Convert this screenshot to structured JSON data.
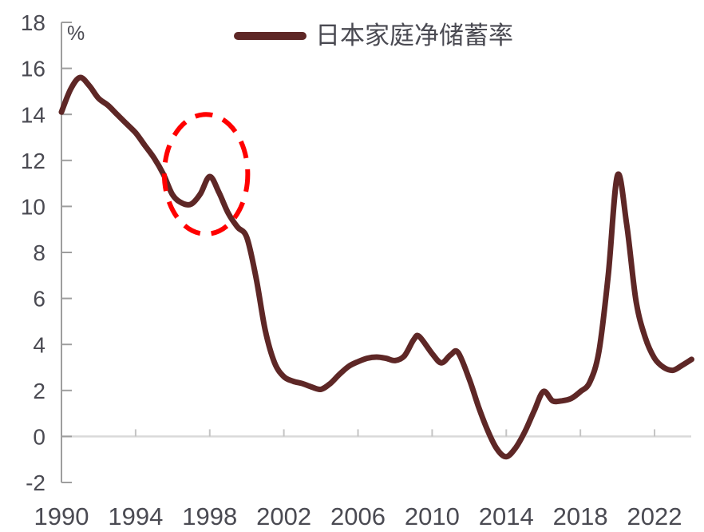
{
  "page": {
    "background": "#ffffff"
  },
  "colors": {
    "series_line": "#5e2726",
    "annotation_red": "#ff0000",
    "axis_line": "#9e9e9e",
    "zero_line": "#d9d9d9",
    "zero_line_tick": "#c4c4c4",
    "label_text": "#4a4a52"
  },
  "legend": {
    "items": [
      {
        "label": "日本家庭净储蓄率",
        "swatch": "line"
      }
    ]
  },
  "chart_data": {
    "type": "line",
    "title": "",
    "unit_label": "%",
    "legend_position": "top-center",
    "grid": "zero-line-only",
    "x_axis": {
      "range": [
        1990,
        2024
      ],
      "tick_values": [
        1990,
        1994,
        1998,
        2002,
        2006,
        2010,
        2014,
        2018,
        2022
      ],
      "tick_labels": [
        "1990",
        "1994",
        "1998",
        "2002",
        "2006",
        "2010",
        "2014",
        "2018",
        "2022"
      ]
    },
    "y_axis": {
      "range": [
        -2,
        18
      ],
      "tick_values": [
        18,
        16,
        14,
        12,
        10,
        8,
        6,
        4,
        2,
        0,
        -2
      ],
      "tick_labels": [
        "18",
        "16",
        "14",
        "12",
        "10",
        "8",
        "6",
        "4",
        "2",
        "0",
        "-2"
      ],
      "unit": "%"
    },
    "series": [
      {
        "name": "日本家庭净储蓄率",
        "color": "#5e2726",
        "points": [
          [
            1990,
            14.1
          ],
          [
            1990.5,
            15.1
          ],
          [
            1991,
            15.6
          ],
          [
            1991.5,
            15.25
          ],
          [
            1992,
            14.7
          ],
          [
            1992.5,
            14.4
          ],
          [
            1993,
            14.0
          ],
          [
            1993.5,
            13.6
          ],
          [
            1994,
            13.2
          ],
          [
            1994.5,
            12.65
          ],
          [
            1995,
            12.1
          ],
          [
            1995.5,
            11.4
          ],
          [
            1996,
            10.5
          ],
          [
            1996.5,
            10.15
          ],
          [
            1997,
            10.1
          ],
          [
            1997.5,
            10.55
          ],
          [
            1998,
            11.3
          ],
          [
            1998.5,
            10.6
          ],
          [
            1999,
            9.7
          ],
          [
            1999.5,
            9.1
          ],
          [
            2000,
            8.65
          ],
          [
            2000.5,
            6.9
          ],
          [
            2001,
            4.6
          ],
          [
            2001.5,
            3.2
          ],
          [
            2002,
            2.6
          ],
          [
            2002.5,
            2.4
          ],
          [
            2003,
            2.3
          ],
          [
            2003.5,
            2.15
          ],
          [
            2004,
            2.05
          ],
          [
            2004.5,
            2.3
          ],
          [
            2005,
            2.7
          ],
          [
            2005.5,
            3.05
          ],
          [
            2006,
            3.25
          ],
          [
            2006.5,
            3.4
          ],
          [
            2007,
            3.45
          ],
          [
            2007.5,
            3.4
          ],
          [
            2008,
            3.3
          ],
          [
            2008.5,
            3.5
          ],
          [
            2009,
            4.2
          ],
          [
            2009.3,
            4.35
          ],
          [
            2010,
            3.6
          ],
          [
            2010.5,
            3.2
          ],
          [
            2011,
            3.55
          ],
          [
            2011.4,
            3.65
          ],
          [
            2012,
            2.5
          ],
          [
            2012.5,
            1.3
          ],
          [
            2013,
            0.25
          ],
          [
            2013.5,
            -0.55
          ],
          [
            2014,
            -0.88
          ],
          [
            2014.5,
            -0.5
          ],
          [
            2015,
            0.2
          ],
          [
            2015.5,
            1.1
          ],
          [
            2016,
            1.95
          ],
          [
            2016.5,
            1.55
          ],
          [
            2017,
            1.55
          ],
          [
            2017.5,
            1.65
          ],
          [
            2018,
            1.95
          ],
          [
            2018.5,
            2.35
          ],
          [
            2019,
            3.7
          ],
          [
            2019.5,
            7.0
          ],
          [
            2020,
            11.35
          ],
          [
            2020.5,
            9.2
          ],
          [
            2021,
            5.9
          ],
          [
            2021.5,
            4.3
          ],
          [
            2022,
            3.4
          ],
          [
            2022.5,
            3.0
          ],
          [
            2023,
            2.88
          ],
          [
            2023.5,
            3.1
          ],
          [
            2024,
            3.35
          ]
        ]
      }
    ],
    "annotations": [
      {
        "type": "ellipse",
        "style": "dashed",
        "color": "#ff0000",
        "center_year": 1997.8,
        "center_value": 11.4,
        "radius_years": 2.25,
        "radius_units": 2.6
      }
    ]
  }
}
